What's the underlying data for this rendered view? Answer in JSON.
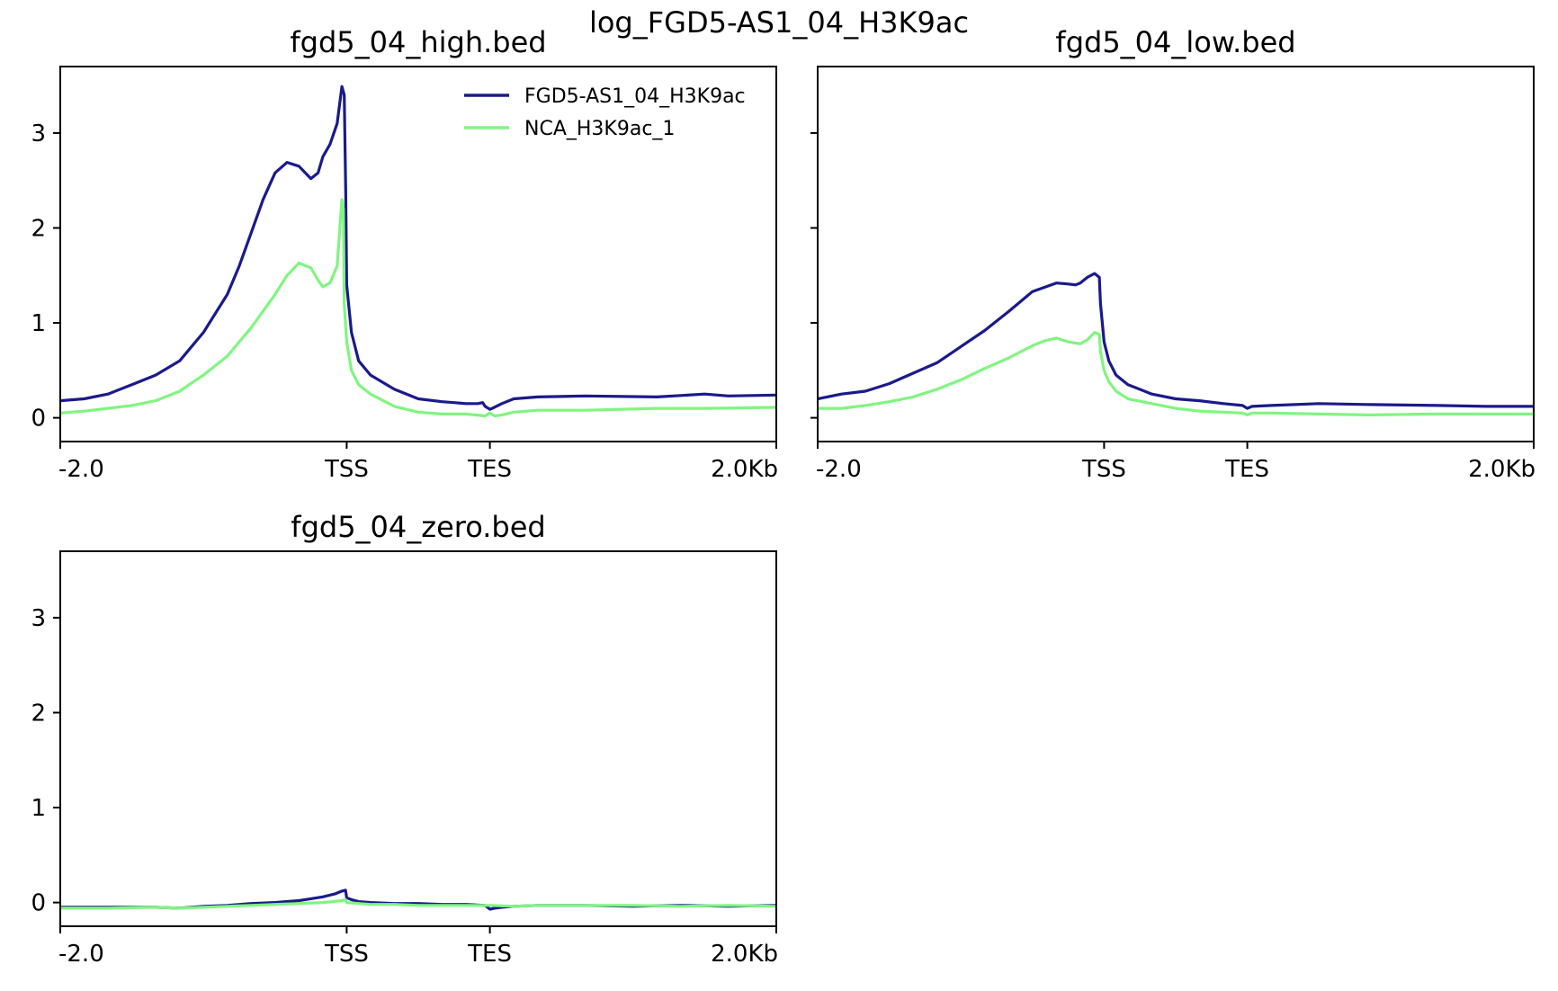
{
  "figure_title": "log_FGD5-AS1_04_H3K9ac",
  "colors": {
    "FGD5-AS1_04_H3K9ac": "#1a1a8c",
    "NCA_H3K9ac_1": "#80f580",
    "axis": "#000000"
  },
  "legend": {
    "placement": "upper-right of first panel",
    "entries": [
      "FGD5-AS1_04_H3K9ac",
      "NCA_H3K9ac_1"
    ]
  },
  "chart_data": [
    {
      "type": "line",
      "title": "fgd5_04_high.bed",
      "x_tick_labels": [
        "-2.0",
        "TSS",
        "TES",
        "2.0Kb"
      ],
      "x_ticks": [
        0,
        120,
        180,
        300
      ],
      "xlim": [
        0,
        300
      ],
      "ylim": [
        -0.25,
        3.7
      ],
      "y_ticks": [
        0,
        1,
        2,
        3
      ],
      "y_tick_labels": [
        "0",
        "1",
        "2",
        "3"
      ],
      "show_y_tick_labels": true,
      "series": [
        {
          "name": "FGD5-AS1_04_H3K9ac",
          "x": [
            0,
            10,
            20,
            30,
            40,
            50,
            60,
            70,
            75,
            80,
            85,
            90,
            95,
            100,
            105,
            108,
            110,
            113,
            116,
            118,
            119,
            119.6,
            120,
            122,
            125,
            130,
            140,
            150,
            160,
            170,
            175,
            177,
            178,
            180,
            181,
            185,
            190,
            200,
            220,
            250,
            270,
            280,
            300
          ],
          "y": [
            0.18,
            0.2,
            0.25,
            0.35,
            0.45,
            0.6,
            0.9,
            1.3,
            1.6,
            1.95,
            2.3,
            2.58,
            2.69,
            2.65,
            2.52,
            2.58,
            2.75,
            2.88,
            3.1,
            3.49,
            3.4,
            2.4,
            1.4,
            0.9,
            0.6,
            0.45,
            0.3,
            0.2,
            0.17,
            0.15,
            0.15,
            0.16,
            0.12,
            0.09,
            0.1,
            0.15,
            0.2,
            0.22,
            0.23,
            0.22,
            0.25,
            0.23,
            0.24
          ]
        },
        {
          "name": "NCA_H3K9ac_1",
          "x": [
            0,
            10,
            20,
            30,
            40,
            50,
            60,
            70,
            80,
            90,
            95,
            100,
            105,
            108,
            110,
            113,
            116,
            118,
            118.6,
            119,
            120,
            122,
            125,
            130,
            140,
            150,
            160,
            170,
            178,
            180,
            182,
            185,
            190,
            200,
            220,
            250,
            270,
            300
          ],
          "y": [
            0.05,
            0.07,
            0.1,
            0.13,
            0.18,
            0.28,
            0.45,
            0.65,
            0.95,
            1.3,
            1.5,
            1.63,
            1.58,
            1.45,
            1.38,
            1.42,
            1.6,
            2.3,
            2.2,
            1.2,
            0.8,
            0.5,
            0.35,
            0.25,
            0.12,
            0.06,
            0.04,
            0.04,
            0.02,
            0.05,
            0.02,
            0.03,
            0.06,
            0.08,
            0.08,
            0.1,
            0.1,
            0.11
          ]
        }
      ]
    },
    {
      "type": "line",
      "title": "fgd5_04_low.bed",
      "x_tick_labels": [
        "-2.0",
        "TSS",
        "TES",
        "2.0Kb"
      ],
      "x_ticks": [
        0,
        120,
        180,
        300
      ],
      "xlim": [
        0,
        300
      ],
      "ylim": [
        -0.25,
        3.7
      ],
      "y_ticks": [
        0,
        1,
        2,
        3
      ],
      "y_tick_labels": [
        "0",
        "1",
        "2",
        "3"
      ],
      "show_y_tick_labels": false,
      "series": [
        {
          "name": "FGD5-AS1_04_H3K9ac",
          "x": [
            0,
            10,
            20,
            30,
            40,
            50,
            60,
            70,
            80,
            90,
            100,
            105,
            108,
            110,
            113,
            116,
            118,
            118.5,
            120,
            122,
            125,
            130,
            140,
            150,
            160,
            170,
            178,
            180,
            182,
            190,
            210,
            230,
            260,
            280,
            300
          ],
          "y": [
            0.2,
            0.25,
            0.28,
            0.36,
            0.47,
            0.58,
            0.75,
            0.92,
            1.12,
            1.33,
            1.42,
            1.41,
            1.4,
            1.42,
            1.48,
            1.52,
            1.48,
            1.2,
            0.8,
            0.6,
            0.45,
            0.35,
            0.25,
            0.2,
            0.18,
            0.15,
            0.13,
            0.1,
            0.12,
            0.13,
            0.15,
            0.14,
            0.13,
            0.12,
            0.12
          ]
        },
        {
          "name": "NCA_H3K9ac_1",
          "x": [
            0,
            10,
            20,
            30,
            40,
            50,
            60,
            70,
            80,
            90,
            95,
            100,
            105,
            110,
            113,
            116,
            118,
            118.5,
            120,
            122,
            125,
            130,
            140,
            150,
            160,
            170,
            178,
            180,
            182,
            190,
            210,
            230,
            260,
            280,
            300
          ],
          "y": [
            0.1,
            0.1,
            0.13,
            0.17,
            0.22,
            0.3,
            0.4,
            0.52,
            0.63,
            0.76,
            0.81,
            0.84,
            0.8,
            0.78,
            0.82,
            0.9,
            0.88,
            0.7,
            0.5,
            0.38,
            0.28,
            0.2,
            0.15,
            0.1,
            0.07,
            0.06,
            0.05,
            0.03,
            0.05,
            0.05,
            0.04,
            0.03,
            0.04,
            0.04,
            0.04
          ]
        }
      ]
    },
    {
      "type": "line",
      "title": "fgd5_04_zero.bed",
      "x_tick_labels": [
        "-2.0",
        "TSS",
        "TES",
        "2.0Kb"
      ],
      "x_ticks": [
        0,
        120,
        180,
        300
      ],
      "xlim": [
        0,
        300
      ],
      "ylim": [
        -0.25,
        3.7
      ],
      "y_ticks": [
        0,
        1,
        2,
        3
      ],
      "y_tick_labels": [
        "0",
        "1",
        "2",
        "3"
      ],
      "show_y_tick_labels": true,
      "series": [
        {
          "name": "FGD5-AS1_04_H3K9ac",
          "x": [
            0,
            20,
            40,
            50,
            60,
            70,
            80,
            90,
            100,
            105,
            110,
            115,
            118,
            119.5,
            120,
            122,
            125,
            130,
            140,
            150,
            160,
            170,
            178,
            180,
            182,
            185,
            190,
            200,
            220,
            240,
            260,
            280,
            300
          ],
          "y": [
            -0.05,
            -0.05,
            -0.05,
            -0.06,
            -0.04,
            -0.03,
            -0.01,
            0,
            0.02,
            0.04,
            0.06,
            0.09,
            0.12,
            0.13,
            0.05,
            0.03,
            0.01,
            0,
            -0.01,
            -0.01,
            -0.02,
            -0.02,
            -0.03,
            -0.07,
            -0.06,
            -0.05,
            -0.04,
            -0.03,
            -0.03,
            -0.04,
            -0.03,
            -0.04,
            -0.03
          ]
        },
        {
          "name": "NCA_H3K9ac_1",
          "x": [
            0,
            20,
            40,
            50,
            60,
            70,
            80,
            90,
            100,
            110,
            118,
            119.5,
            120,
            125,
            130,
            140,
            150,
            160,
            170,
            180,
            190,
            200,
            220,
            240,
            260,
            280,
            300
          ],
          "y": [
            -0.06,
            -0.06,
            -0.05,
            -0.06,
            -0.05,
            -0.04,
            -0.03,
            -0.02,
            -0.01,
            0,
            0.02,
            0.03,
            0,
            -0.01,
            -0.02,
            -0.02,
            -0.03,
            -0.03,
            -0.03,
            -0.03,
            -0.04,
            -0.03,
            -0.03,
            -0.03,
            -0.04,
            -0.03,
            -0.04
          ]
        }
      ]
    }
  ]
}
